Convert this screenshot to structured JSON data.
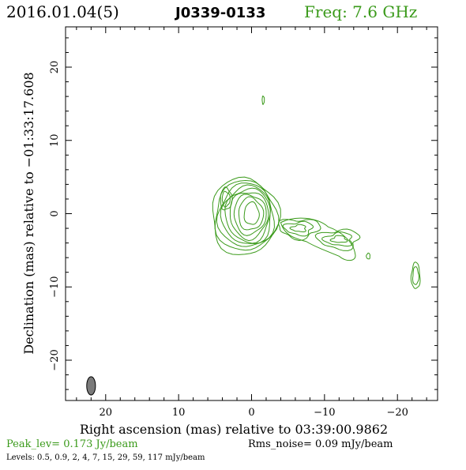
{
  "header": {
    "date": "2016.01.04(5)",
    "source": "J0339-0133",
    "freq": "Freq: 7.6 GHz"
  },
  "colors": {
    "text": "#000000",
    "accent": "#3a9a1a",
    "contour": "#3a9a1a",
    "beam_fill": "#7a7a7a"
  },
  "footer": {
    "peak": "Peak_lev=  0.173 Jy/beam",
    "rms": "Rms_noise= 0.09 mJy/beam",
    "levels": "Levels: 0.5, 0.9,   2,   4,   7,  15,  29,  59, 117 mJy/beam"
  },
  "chart_data": {
    "type": "contour",
    "xlabel": "Right ascension (mas) relative to 03:39:00.9862",
    "ylabel": "Declination (mas) relative to −01:33:17.608",
    "xlim": [
      25.5,
      -25.5
    ],
    "ylim": [
      -25.5,
      25.5
    ],
    "x_ticks": [
      20,
      10,
      0,
      -10,
      -20
    ],
    "x_tick_labels": [
      "20",
      "10",
      "0",
      "−10",
      "−20"
    ],
    "y_ticks": [
      20,
      10,
      0,
      -10,
      -20
    ],
    "y_tick_labels": [
      "20",
      "10",
      "0",
      "−10",
      "−20"
    ],
    "contour_levels_mJy_per_beam": [
      0.5,
      0.9,
      2,
      4,
      7,
      15,
      29,
      59,
      117
    ],
    "peak_Jy_per_beam": 0.173,
    "rms_noise_mJy_per_beam": 0.09,
    "core": {
      "x": 0.0,
      "y": 0.0
    },
    "features": [
      {
        "name": "core",
        "x": 0.0,
        "y": 0.0,
        "levels": 9
      },
      {
        "name": "east-blob",
        "x": 3.5,
        "y": 2.0,
        "levels": 2
      },
      {
        "name": "north-knot",
        "x": -1.6,
        "y": 15.5,
        "levels": 1
      },
      {
        "name": "jet-knot-1",
        "x": -6.5,
        "y": -2.0,
        "levels": 3
      },
      {
        "name": "jet-knot-2",
        "x": -12.0,
        "y": -3.5,
        "levels": 3
      },
      {
        "name": "small-knot",
        "x": -16.0,
        "y": -5.8,
        "levels": 1
      },
      {
        "name": "outer-knot",
        "x": -22.5,
        "y": -8.5,
        "levels": 2
      }
    ],
    "beam": {
      "x": 22,
      "y": -23.5,
      "major_mas": 2.5,
      "minor_mas": 1.2,
      "pa_deg": 0
    }
  }
}
